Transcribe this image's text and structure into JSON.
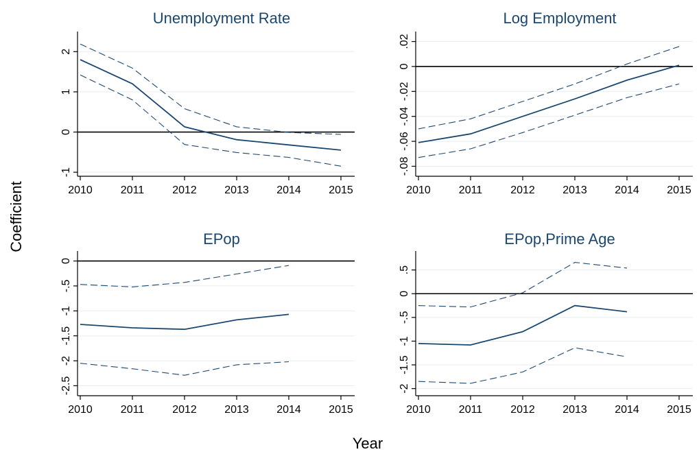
{
  "figure": {
    "xlabel": "Year",
    "ylabel": "Coefficient"
  },
  "colors": {
    "line": "#1a476f",
    "zero_line": "#000000",
    "grid": "#e6edf2",
    "title": "#1a476f",
    "text": "#000000"
  },
  "chart_data": [
    {
      "type": "line",
      "title": "Unemployment Rate",
      "x": [
        2010,
        2011,
        2012,
        2013,
        2014,
        2015
      ],
      "xticks": [
        "2010",
        "2011",
        "2012",
        "2013",
        "2014",
        "2015"
      ],
      "ylim": [
        -1.1,
        2.5
      ],
      "yticks": [
        -1,
        0,
        1,
        2
      ],
      "yticklabels": [
        "-1",
        "0",
        "1",
        "2"
      ],
      "reference_line": 0,
      "grid": true,
      "series": [
        {
          "style": "solid",
          "values": [
            1.8,
            1.2,
            0.13,
            -0.19,
            -0.32,
            -0.45
          ]
        },
        {
          "style": "dashed",
          "values": [
            2.19,
            1.59,
            0.58,
            0.13,
            -0.01,
            -0.06
          ]
        },
        {
          "style": "dashed",
          "values": [
            1.42,
            0.8,
            -0.31,
            -0.51,
            -0.63,
            -0.85
          ]
        }
      ]
    },
    {
      "type": "line",
      "title": "Log Employment",
      "x": [
        2010,
        2011,
        2012,
        2013,
        2014,
        2015
      ],
      "xticks": [
        "2010",
        "2011",
        "2012",
        "2013",
        "2014",
        "2015"
      ],
      "ylim": [
        -0.088,
        0.028
      ],
      "yticks": [
        -0.08,
        -0.06,
        -0.04,
        -0.02,
        0,
        0.02
      ],
      "yticklabels": [
        "-.08",
        "-.06",
        "-.04",
        "-.02",
        "0",
        ".02"
      ],
      "reference_line": 0,
      "grid": true,
      "series": [
        {
          "style": "solid",
          "values": [
            -0.061,
            -0.054,
            -0.04,
            -0.026,
            -0.011,
            0.001
          ]
        },
        {
          "style": "dashed",
          "values": [
            -0.05,
            -0.042,
            -0.028,
            -0.014,
            0.002,
            0.016
          ]
        },
        {
          "style": "dashed",
          "values": [
            -0.073,
            -0.066,
            -0.053,
            -0.039,
            -0.025,
            -0.014
          ]
        }
      ]
    },
    {
      "type": "line",
      "title": "EPop",
      "x": [
        2010,
        2011,
        2012,
        2013,
        2014,
        2015
      ],
      "xticks": [
        "2010",
        "2011",
        "2012",
        "2013",
        "2014",
        "2015"
      ],
      "ylim": [
        -2.7,
        0.2
      ],
      "yticks": [
        -2.5,
        -2,
        -1.5,
        -1,
        -0.5,
        0
      ],
      "yticklabels": [
        "-2.5",
        "-2",
        "-1.5",
        "-1",
        "-.5",
        "0"
      ],
      "reference_line": 0,
      "grid": true,
      "series": [
        {
          "style": "solid",
          "values": [
            -1.27,
            -1.34,
            -1.37,
            -1.18,
            -1.07,
            null
          ]
        },
        {
          "style": "dashed",
          "values": [
            -0.47,
            -0.52,
            -0.43,
            -0.26,
            -0.09,
            null
          ]
        },
        {
          "style": "dashed",
          "values": [
            -2.05,
            -2.16,
            -2.29,
            -2.08,
            -2.02,
            null
          ]
        }
      ]
    },
    {
      "type": "line",
      "title": "EPop,Prime Age",
      "x": [
        2010,
        2011,
        2012,
        2013,
        2014,
        2015
      ],
      "xticks": [
        "2010",
        "2011",
        "2012",
        "2013",
        "2014",
        "2015"
      ],
      "ylim": [
        -2.15,
        0.9
      ],
      "yticks": [
        -2,
        -1.5,
        -1,
        -0.5,
        0,
        0.5
      ],
      "yticklabels": [
        "-2",
        "-1.5",
        "-1",
        "-.5",
        "0",
        ".5"
      ],
      "reference_line": 0,
      "grid": true,
      "series": [
        {
          "style": "solid",
          "values": [
            -1.05,
            -1.08,
            -0.8,
            -0.25,
            -0.38,
            null
          ]
        },
        {
          "style": "dashed",
          "values": [
            -0.25,
            -0.28,
            0.02,
            0.66,
            0.54,
            null
          ]
        },
        {
          "style": "dashed",
          "values": [
            -1.85,
            -1.89,
            -1.65,
            -1.14,
            -1.33,
            null
          ]
        }
      ]
    }
  ]
}
